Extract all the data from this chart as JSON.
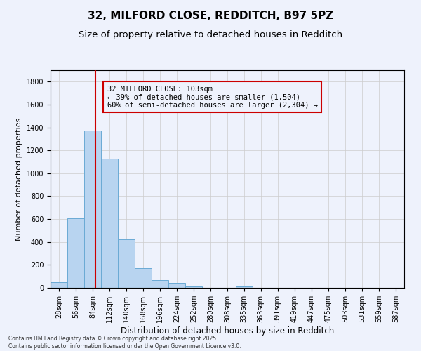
{
  "title1": "32, MILFORD CLOSE, REDDITCH, B97 5PZ",
  "title2": "Size of property relative to detached houses in Redditch",
  "xlabel": "Distribution of detached houses by size in Redditch",
  "ylabel": "Number of detached properties",
  "bar_values": [
    50,
    605,
    1370,
    1130,
    425,
    170,
    65,
    40,
    15,
    0,
    0,
    15,
    0,
    0,
    0,
    0,
    0,
    0,
    0,
    0
  ],
  "bin_labels": [
    "28sqm",
    "56sqm",
    "84sqm",
    "112sqm",
    "140sqm",
    "168sqm",
    "196sqm",
    "224sqm",
    "252sqm",
    "280sqm",
    "308sqm",
    "335sqm",
    "363sqm",
    "391sqm",
    "419sqm",
    "447sqm",
    "475sqm",
    "503sqm",
    "531sqm",
    "559sqm",
    "587sqm"
  ],
  "bin_edges": [
    28,
    56,
    84,
    112,
    140,
    168,
    196,
    224,
    252,
    280,
    308,
    335,
    363,
    391,
    419,
    447,
    475,
    503,
    531,
    559,
    587
  ],
  "bar_color": "#b8d4f0",
  "bar_edge_color": "#6aaad4",
  "vline_x": 103,
  "vline_color": "#cc0000",
  "ylim": [
    0,
    1900
  ],
  "yticks": [
    0,
    200,
    400,
    600,
    800,
    1000,
    1200,
    1400,
    1600,
    1800
  ],
  "annotation_line1": "32 MILFORD CLOSE: 103sqm",
  "annotation_line2": "← 39% of detached houses are smaller (1,504)",
  "annotation_line3": "60% of semi-detached houses are larger (2,304) →",
  "annotation_box_color": "#cc0000",
  "footer_text": "Contains HM Land Registry data © Crown copyright and database right 2025.\nContains public sector information licensed under the Open Government Licence v3.0.",
  "background_color": "#eef2fc",
  "grid_color": "#cccccc",
  "title1_fontsize": 11,
  "title2_fontsize": 9.5,
  "xlabel_fontsize": 8.5,
  "ylabel_fontsize": 8,
  "tick_fontsize": 7,
  "footer_fontsize": 5.5,
  "annot_fontsize": 7.5
}
